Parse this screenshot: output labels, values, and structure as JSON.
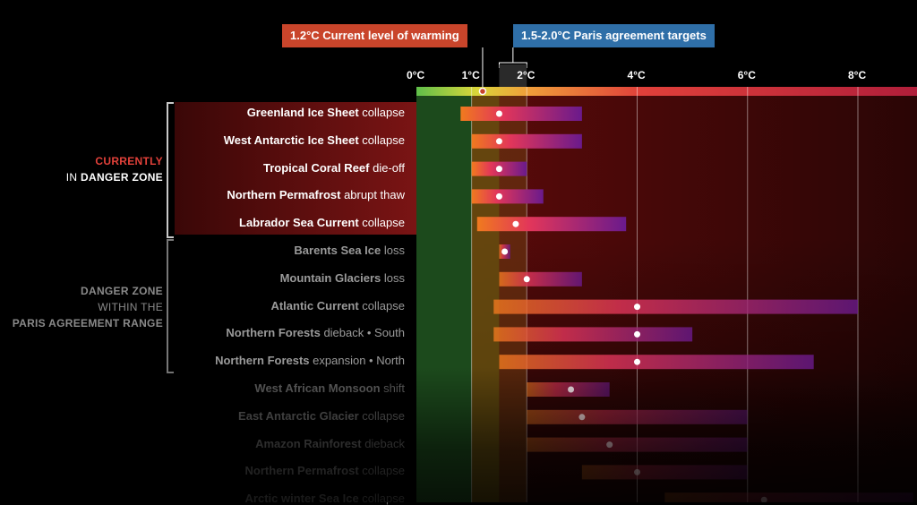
{
  "callouts": {
    "current": "1.2°C  Current level of warming",
    "paris": "1.5-2.0°C  Paris agreement targets"
  },
  "groups": {
    "current_line1": "CURRENTLY",
    "current_line2a": "IN ",
    "current_line2b": "DANGER ZONE",
    "paris_line1": "DANGER ZONE",
    "paris_line2": "WITHIN THE",
    "paris_line3": "PARIS AGREEMENT RANGE"
  },
  "colors": {
    "green_zone": "#3ea43a",
    "current_red": "#c9452b",
    "paris_blue": "#2f6fa8",
    "bar_start": "#f07a1e",
    "bar_end": "#6a1a8c"
  },
  "chart_data": {
    "type": "bar",
    "title": "",
    "xlabel": "",
    "ylabel": "",
    "xlim": [
      0,
      9
    ],
    "x_ticks": [
      "0°C",
      "1°C",
      "2°C",
      "4°C",
      "6°C",
      "8°C"
    ],
    "x_tick_values": [
      0,
      1,
      2,
      4,
      6,
      8
    ],
    "current_warming": 1.2,
    "paris_range": [
      1.5,
      2.0
    ],
    "grid": true,
    "series": [
      {
        "name_bold": "Greenland Ice Sheet",
        "name_rest": " collapse",
        "low": 0.8,
        "best": 1.5,
        "high": 3.0,
        "group": "current"
      },
      {
        "name_bold": "West Antarctic Ice Sheet",
        "name_rest": " collapse",
        "low": 1.0,
        "best": 1.5,
        "high": 3.0,
        "group": "current"
      },
      {
        "name_bold": "Tropical Coral Reef",
        "name_rest": " die-off",
        "low": 1.0,
        "best": 1.5,
        "high": 2.0,
        "group": "current"
      },
      {
        "name_bold": "Northern Permafrost",
        "name_rest": " abrupt thaw",
        "low": 1.0,
        "best": 1.5,
        "high": 2.3,
        "group": "current"
      },
      {
        "name_bold": "Labrador Sea Current",
        "name_rest": " collapse",
        "low": 1.1,
        "best": 1.8,
        "high": 3.8,
        "group": "current"
      },
      {
        "name_bold": "Barents Sea Ice",
        "name_rest": " loss",
        "low": 1.5,
        "best": 1.6,
        "high": 1.7,
        "group": "paris"
      },
      {
        "name_bold": "Mountain Glaciers",
        "name_rest": " loss",
        "low": 1.5,
        "best": 2.0,
        "high": 3.0,
        "group": "paris"
      },
      {
        "name_bold": "Atlantic Current",
        "name_rest": " collapse",
        "low": 1.4,
        "best": 4.0,
        "high": 8.0,
        "group": "paris"
      },
      {
        "name_bold": "Northern Forests",
        "name_rest": " dieback • South",
        "low": 1.4,
        "best": 4.0,
        "high": 5.0,
        "group": "paris"
      },
      {
        "name_bold": "Northern Forests",
        "name_rest": " expansion • North",
        "low": 1.5,
        "best": 4.0,
        "high": 7.2,
        "group": "paris"
      },
      {
        "name_bold": "West African Monsoon",
        "name_rest": " shift",
        "low": 2.0,
        "best": 2.8,
        "high": 3.5,
        "group": "other"
      },
      {
        "name_bold": "East Antarctic Glacier",
        "name_rest": " collapse",
        "low": 2.0,
        "best": 3.0,
        "high": 6.0,
        "group": "other"
      },
      {
        "name_bold": "Amazon Rainforest",
        "name_rest": " dieback",
        "low": 2.0,
        "best": 3.5,
        "high": 6.0,
        "group": "other"
      },
      {
        "name_bold": "Northern Permafrost",
        "name_rest": " collapse",
        "low": 3.0,
        "best": 4.0,
        "high": 6.0,
        "group": "other"
      },
      {
        "name_bold": "Arctic winter Sea Ice",
        "name_rest": " collapse",
        "low": 4.5,
        "best": 6.3,
        "high": 9.0,
        "group": "other"
      }
    ]
  }
}
